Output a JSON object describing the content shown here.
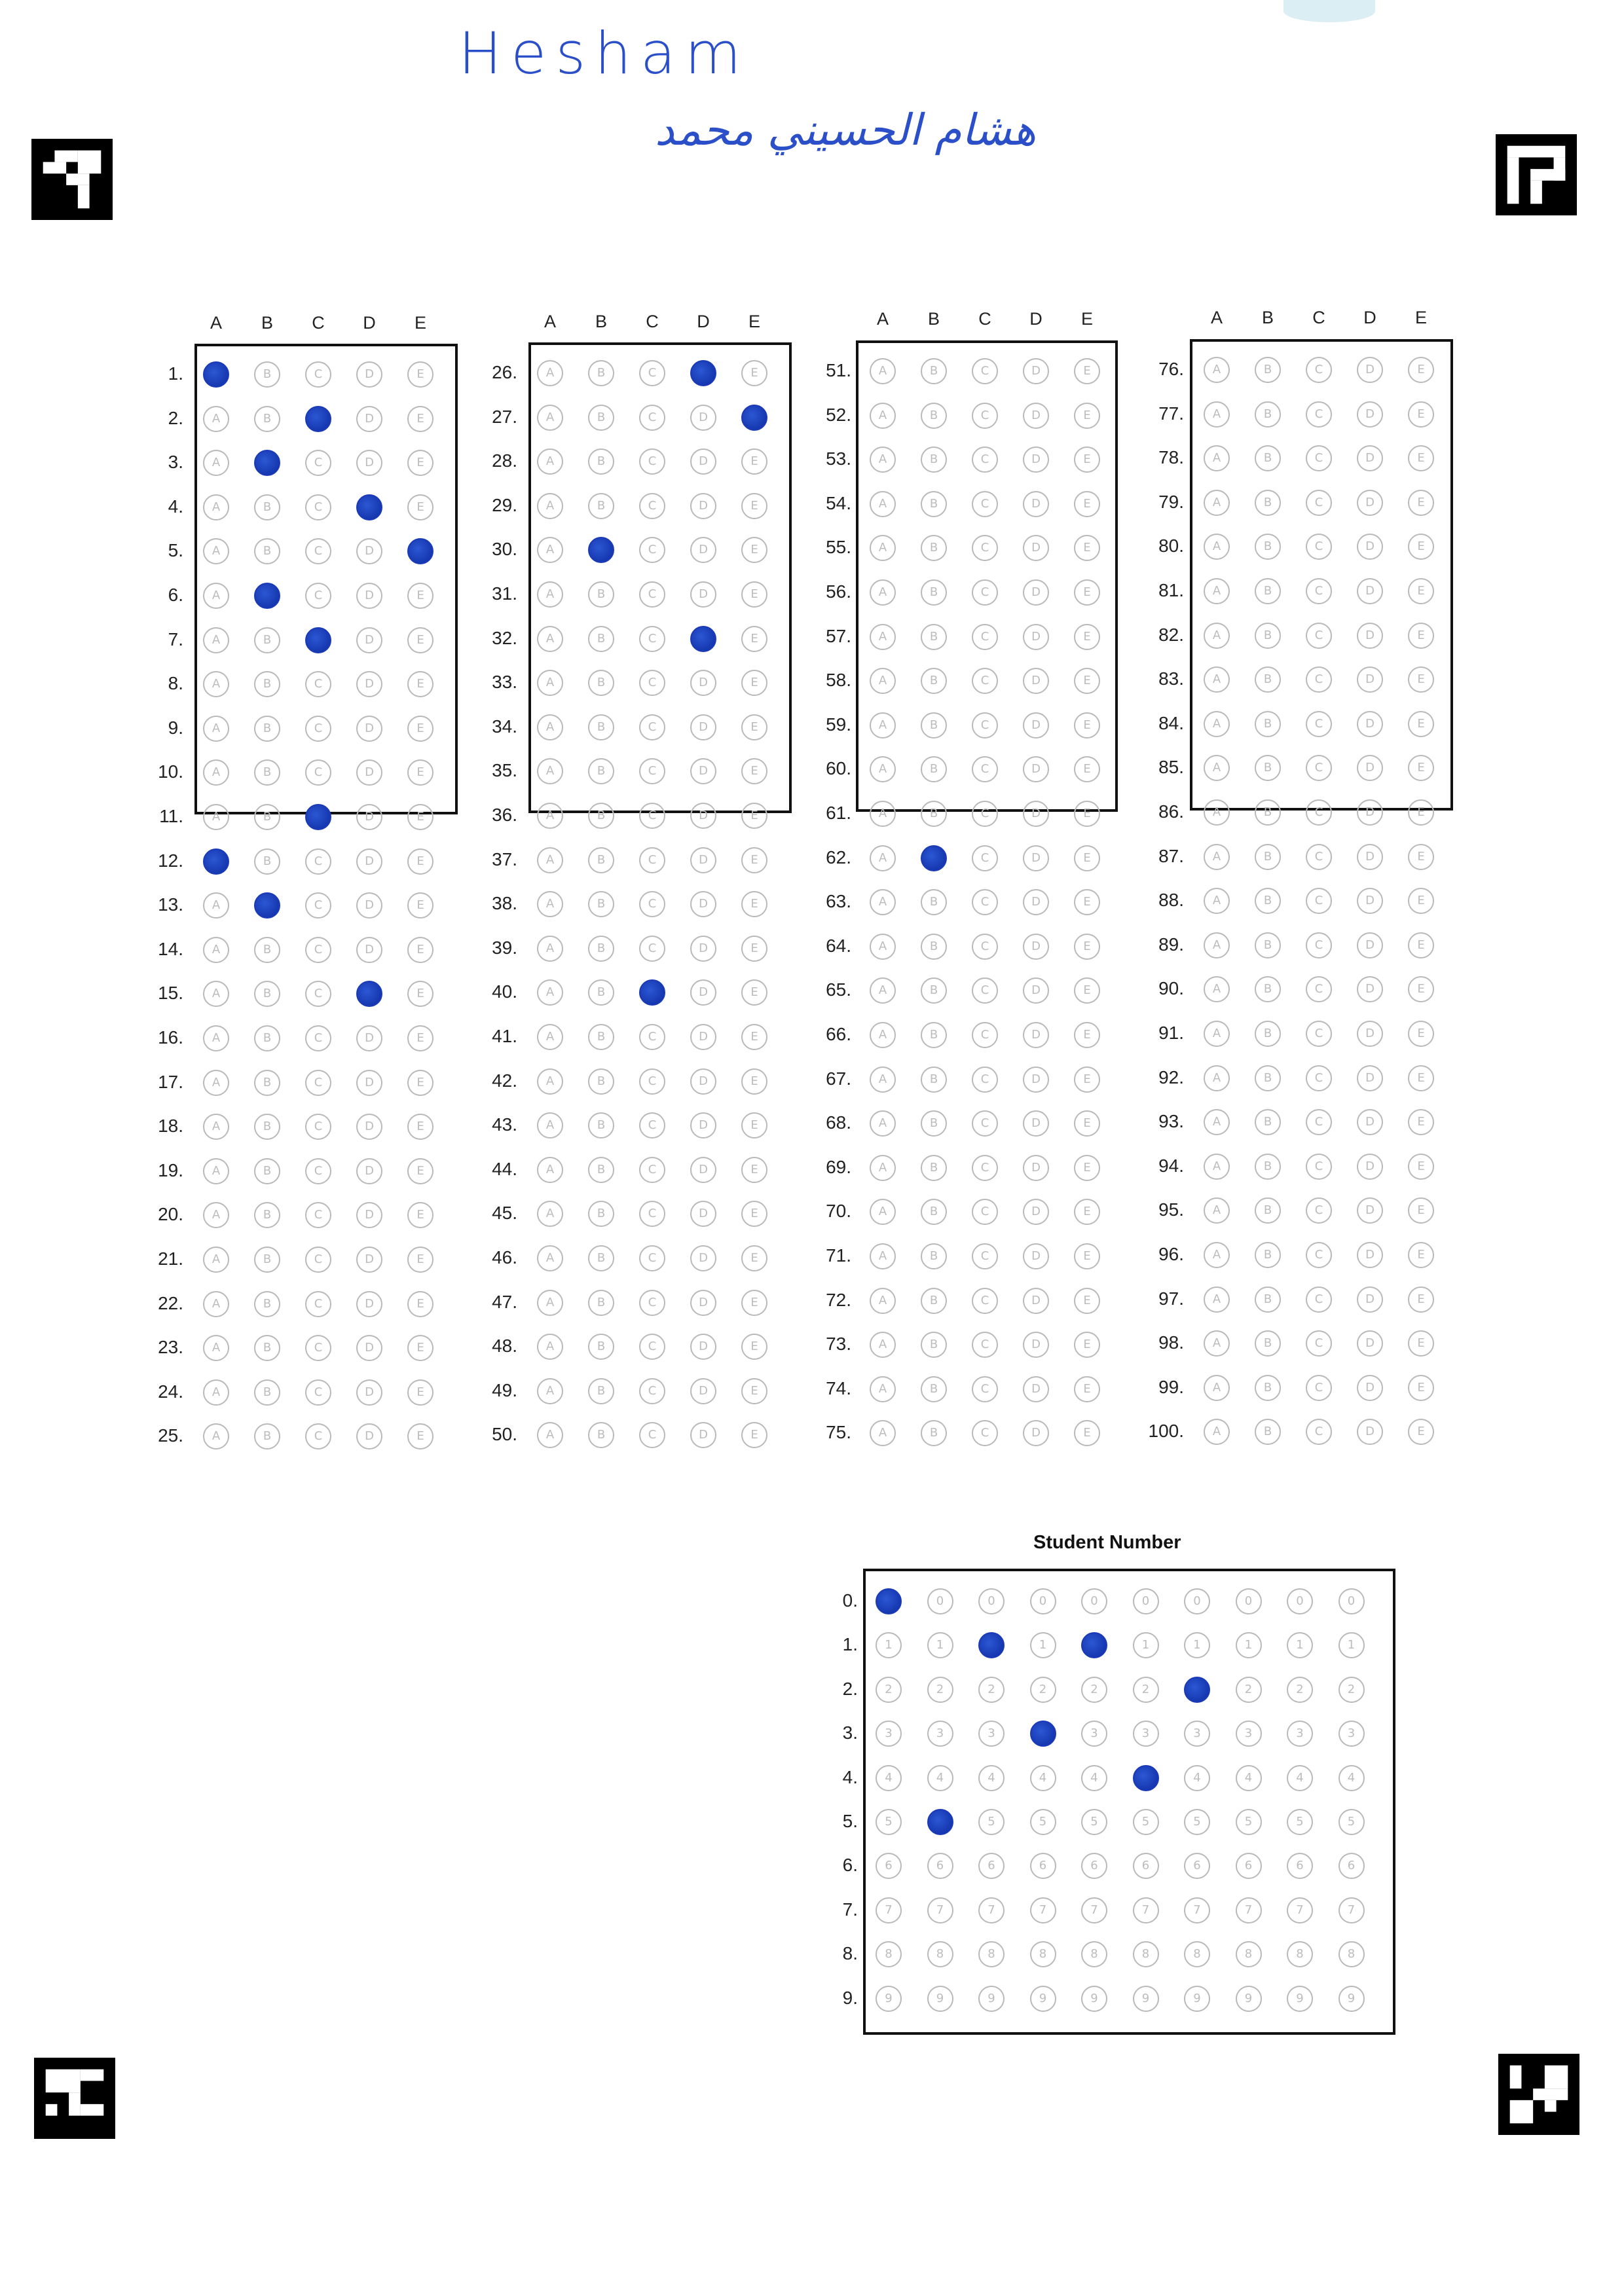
{
  "handwriting": {
    "latin_name": "Hesham",
    "arabic_name": "هشام الحسيني محمد"
  },
  "answer_section": {
    "columns": [
      "A",
      "B",
      "C",
      "D",
      "E"
    ],
    "blocks": [
      {
        "start": 1,
        "end": 25
      },
      {
        "start": 26,
        "end": 50
      },
      {
        "start": 51,
        "end": 75
      },
      {
        "start": 76,
        "end": 100
      }
    ],
    "marked_answers": {
      "1": "A",
      "2": "C",
      "3": "B",
      "4": "D",
      "5": "E",
      "6": "B",
      "7": "C",
      "11": "C",
      "12": "A",
      "13": "B",
      "15": "D",
      "26": "D",
      "27": "E",
      "30": "B",
      "32": "D",
      "40": "C",
      "62": "B"
    }
  },
  "student_number": {
    "title": "Student Number",
    "rows": [
      "0",
      "1",
      "2",
      "3",
      "4",
      "5",
      "6",
      "7",
      "8",
      "9"
    ],
    "digit_columns": 10,
    "marked_digits_per_column": [
      0,
      5,
      1,
      3,
      1,
      4,
      2,
      null,
      null,
      null
    ]
  },
  "colors": {
    "ink": "#1b3ab8",
    "bubble_outline": "#b9b9b9",
    "border": "#111111"
  }
}
